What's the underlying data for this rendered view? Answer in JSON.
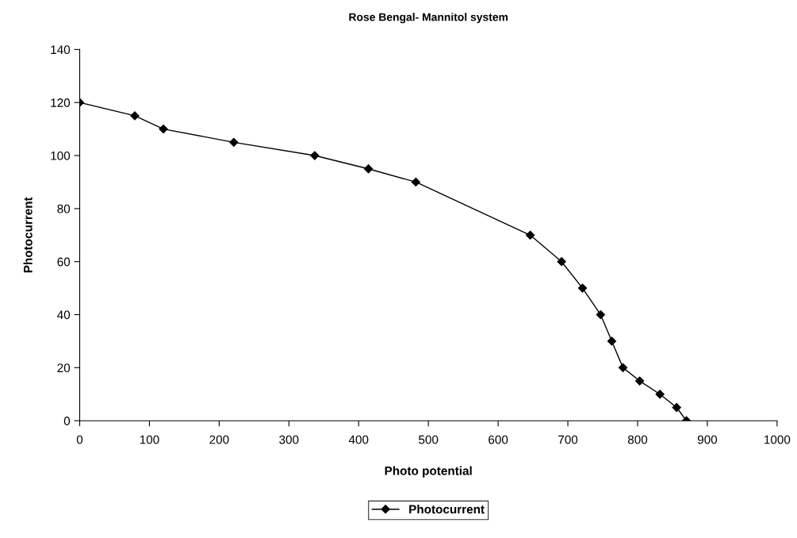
{
  "chart_data": {
    "type": "line",
    "title": "Rose Bengal- Mannitol system",
    "xlabel": "Photo potential",
    "ylabel": "Photocurrent",
    "xlim": [
      0,
      1000
    ],
    "xticks": [
      0,
      100,
      200,
      300,
      400,
      500,
      600,
      700,
      800,
      900,
      1000
    ],
    "ylim": [
      0,
      140
    ],
    "yticks": [
      0,
      20,
      40,
      60,
      80,
      100,
      120,
      140
    ],
    "marker": "diamond",
    "line_style": "solid",
    "grid": false,
    "legend": "bottom",
    "series": [
      {
        "name": "Photocurrent",
        "color": "#000000",
        "x": [
          0,
          79,
          120,
          221,
          337,
          414,
          482,
          646,
          691,
          721,
          747,
          763,
          779,
          803,
          832,
          856,
          870
        ],
        "values": [
          120,
          115,
          110,
          105,
          100,
          95,
          90,
          70,
          60,
          50,
          40,
          30,
          20,
          15,
          10,
          5,
          0
        ]
      }
    ]
  }
}
